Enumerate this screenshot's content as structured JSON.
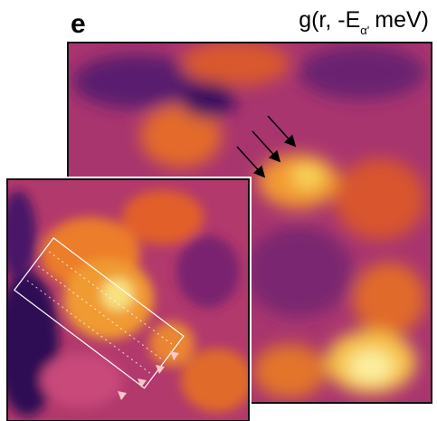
{
  "panel": {
    "label": "e",
    "title": {
      "main": "g(r, -E",
      "subscript": "α'",
      "unit": "meV)"
    }
  }
}
